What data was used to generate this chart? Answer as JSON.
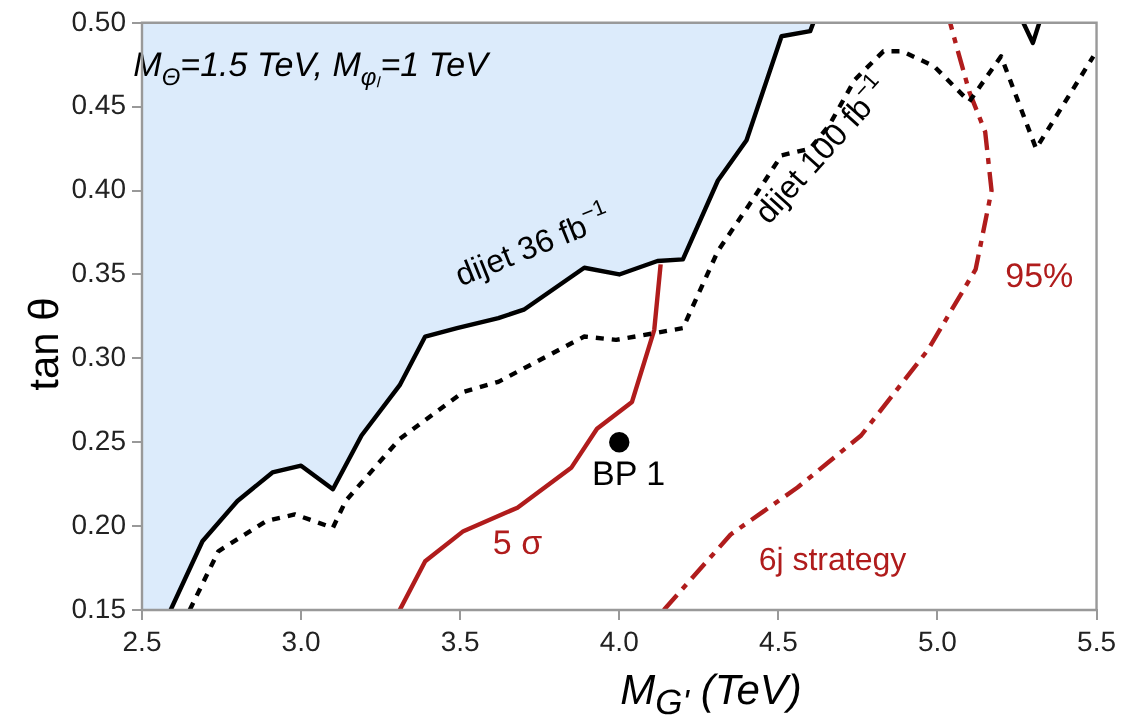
{
  "chart_data": {
    "type": "line",
    "xlabel": "M$_{G'}$ (TeV)",
    "ylabel": "tan θ",
    "xlim": [
      2.5,
      5.5
    ],
    "xticks": [
      2.5,
      {
        "value": 3,
        "label": "3.0"
      },
      3.5,
      {
        "value": 4,
        "label": "4.0"
      },
      4.5,
      {
        "value": 5,
        "label": "5.0"
      },
      5.5
    ],
    "ylim": [
      0.15,
      0.5
    ],
    "yticks": [
      0.15,
      {
        "value": 0.2,
        "label": "0.20"
      },
      0.25,
      {
        "value": 0.3,
        "label": "0.30"
      },
      0.35,
      {
        "value": 0.4,
        "label": "0.40"
      },
      0.45,
      {
        "value": 0.5,
        "label": "0.50"
      }
    ],
    "grid": false,
    "legend": false,
    "marker": "none",
    "series": [
      {
        "type": "area",
        "color": "#000000",
        "line_style": "solid",
        "x": [
          2.5,
          2.5,
          2.59,
          2.69,
          2.8,
          2.91,
          3.0,
          3.1,
          3.19,
          3.31,
          3.39,
          3.49,
          3.62,
          3.7,
          3.89,
          4.0,
          4.12,
          4.2,
          4.31,
          4.4,
          4.51,
          4.6,
          4.61
        ],
        "values": [
          0.5,
          0.15,
          0.15,
          0.191,
          0.215,
          0.232,
          0.236,
          0.222,
          0.254,
          0.284,
          0.313,
          0.318,
          0.324,
          0.329,
          0.354,
          0.35,
          0.358,
          0.359,
          0.406,
          0.43,
          0.492,
          0.495,
          0.5
        ]
      },
      {
        "color": "#000000",
        "line_style": "solid",
        "x": [
          5.27,
          5.3,
          5.32
        ],
        "values": [
          0.5,
          0.488,
          0.5
        ]
      },
      {
        "color": "#000000",
        "line_style": "dotted",
        "x": [
          2.65,
          2.74,
          2.89,
          2.98,
          3.04,
          3.1,
          3.14,
          3.31,
          3.51,
          3.62,
          3.89,
          3.99,
          4.2,
          4.31,
          4.41,
          4.51,
          4.6,
          4.66,
          4.74,
          4.83,
          4.89,
          4.99,
          5.1,
          5.2,
          5.31,
          5.49
        ],
        "values": [
          0.15,
          0.185,
          0.203,
          0.207,
          0.203,
          0.199,
          0.215,
          0.252,
          0.28,
          0.286,
          0.313,
          0.311,
          0.318,
          0.364,
          0.392,
          0.421,
          0.425,
          0.439,
          0.466,
          0.483,
          0.483,
          0.474,
          0.453,
          0.48,
          0.425,
          0.48
        ]
      },
      {
        "color": "#b01c1c",
        "line_style": "solid",
        "x": [
          3.31,
          3.39,
          3.51,
          3.68,
          3.85,
          3.93,
          4.04,
          4.11,
          4.13
        ],
        "values": [
          0.15,
          0.179,
          0.197,
          0.211,
          0.235,
          0.258,
          0.274,
          0.317,
          0.356
        ]
      },
      {
        "color": "#b01c1c",
        "line_style": "dashed",
        "x": [
          4.14,
          4.35,
          4.56,
          4.76,
          4.97,
          5.12,
          5.17,
          5.15,
          5.1,
          5.06,
          5.04
        ],
        "values": [
          0.15,
          0.195,
          0.223,
          0.254,
          0.305,
          0.353,
          0.4,
          0.435,
          0.459,
          0.486,
          0.5
        ]
      },
      {
        "type": "scatter",
        "color": "#000000",
        "marker": "circle",
        "x": [
          4.0
        ],
        "values": [
          0.25
        ]
      }
    ],
    "annotations": [
      "M$_{Θ}$=1.5 TeV, M$_{φₗ}$=1 TeV",
      "dijet 36 fb$^{−1}$",
      "dijet 100 fb$^{−1}$",
      "95%",
      "5 σ",
      "BP 1",
      "6j strategy"
    ]
  }
}
